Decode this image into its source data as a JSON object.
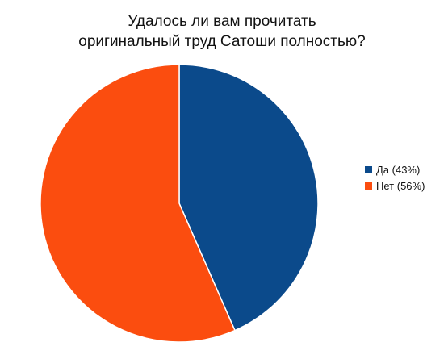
{
  "chart_data": {
    "type": "pie",
    "title_lines": [
      "Удалось ли вам прочитать",
      "оригинальный труд Сатоши полностью?"
    ],
    "slices": [
      {
        "label": "Да",
        "value": 43,
        "legend_text": "Да  (43%)",
        "color": "#0b4a8b"
      },
      {
        "label": "Нет",
        "value": 56,
        "legend_text": "Нет  (56%)",
        "color": "#fb4d0f"
      }
    ],
    "start_angle_deg": 0,
    "direction": "clockwise",
    "legend_position": "right"
  }
}
